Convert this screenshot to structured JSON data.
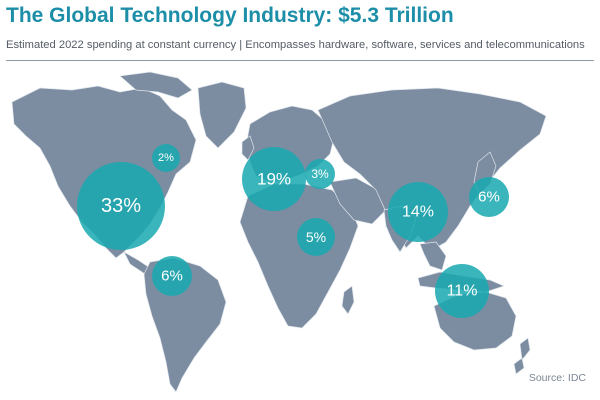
{
  "title": "The Global Technology Industry: $5.3 Trillion",
  "subtitle": "Estimated 2022 spending at constant currency | Encompasses hardware, software, services and telecommunications",
  "source": "Source: IDC",
  "colors": {
    "title": "#1c8ea8",
    "land": "#7c8ca1",
    "bubble": "#1aa9b0"
  },
  "bubbles": [
    {
      "region": "north-america",
      "label": "33%",
      "value": 33
    },
    {
      "region": "canada",
      "label": "2%",
      "value": 2
    },
    {
      "region": "latin-america",
      "label": "6%",
      "value": 6
    },
    {
      "region": "western-europe",
      "label": "19%",
      "value": 19
    },
    {
      "region": "central-eastern-europe",
      "label": "3%",
      "value": 3
    },
    {
      "region": "middle-east-africa",
      "label": "5%",
      "value": 5
    },
    {
      "region": "china",
      "label": "14%",
      "value": 14
    },
    {
      "region": "japan",
      "label": "6%",
      "value": 6
    },
    {
      "region": "asia-pacific",
      "label": "11%",
      "value": 11
    }
  ]
}
